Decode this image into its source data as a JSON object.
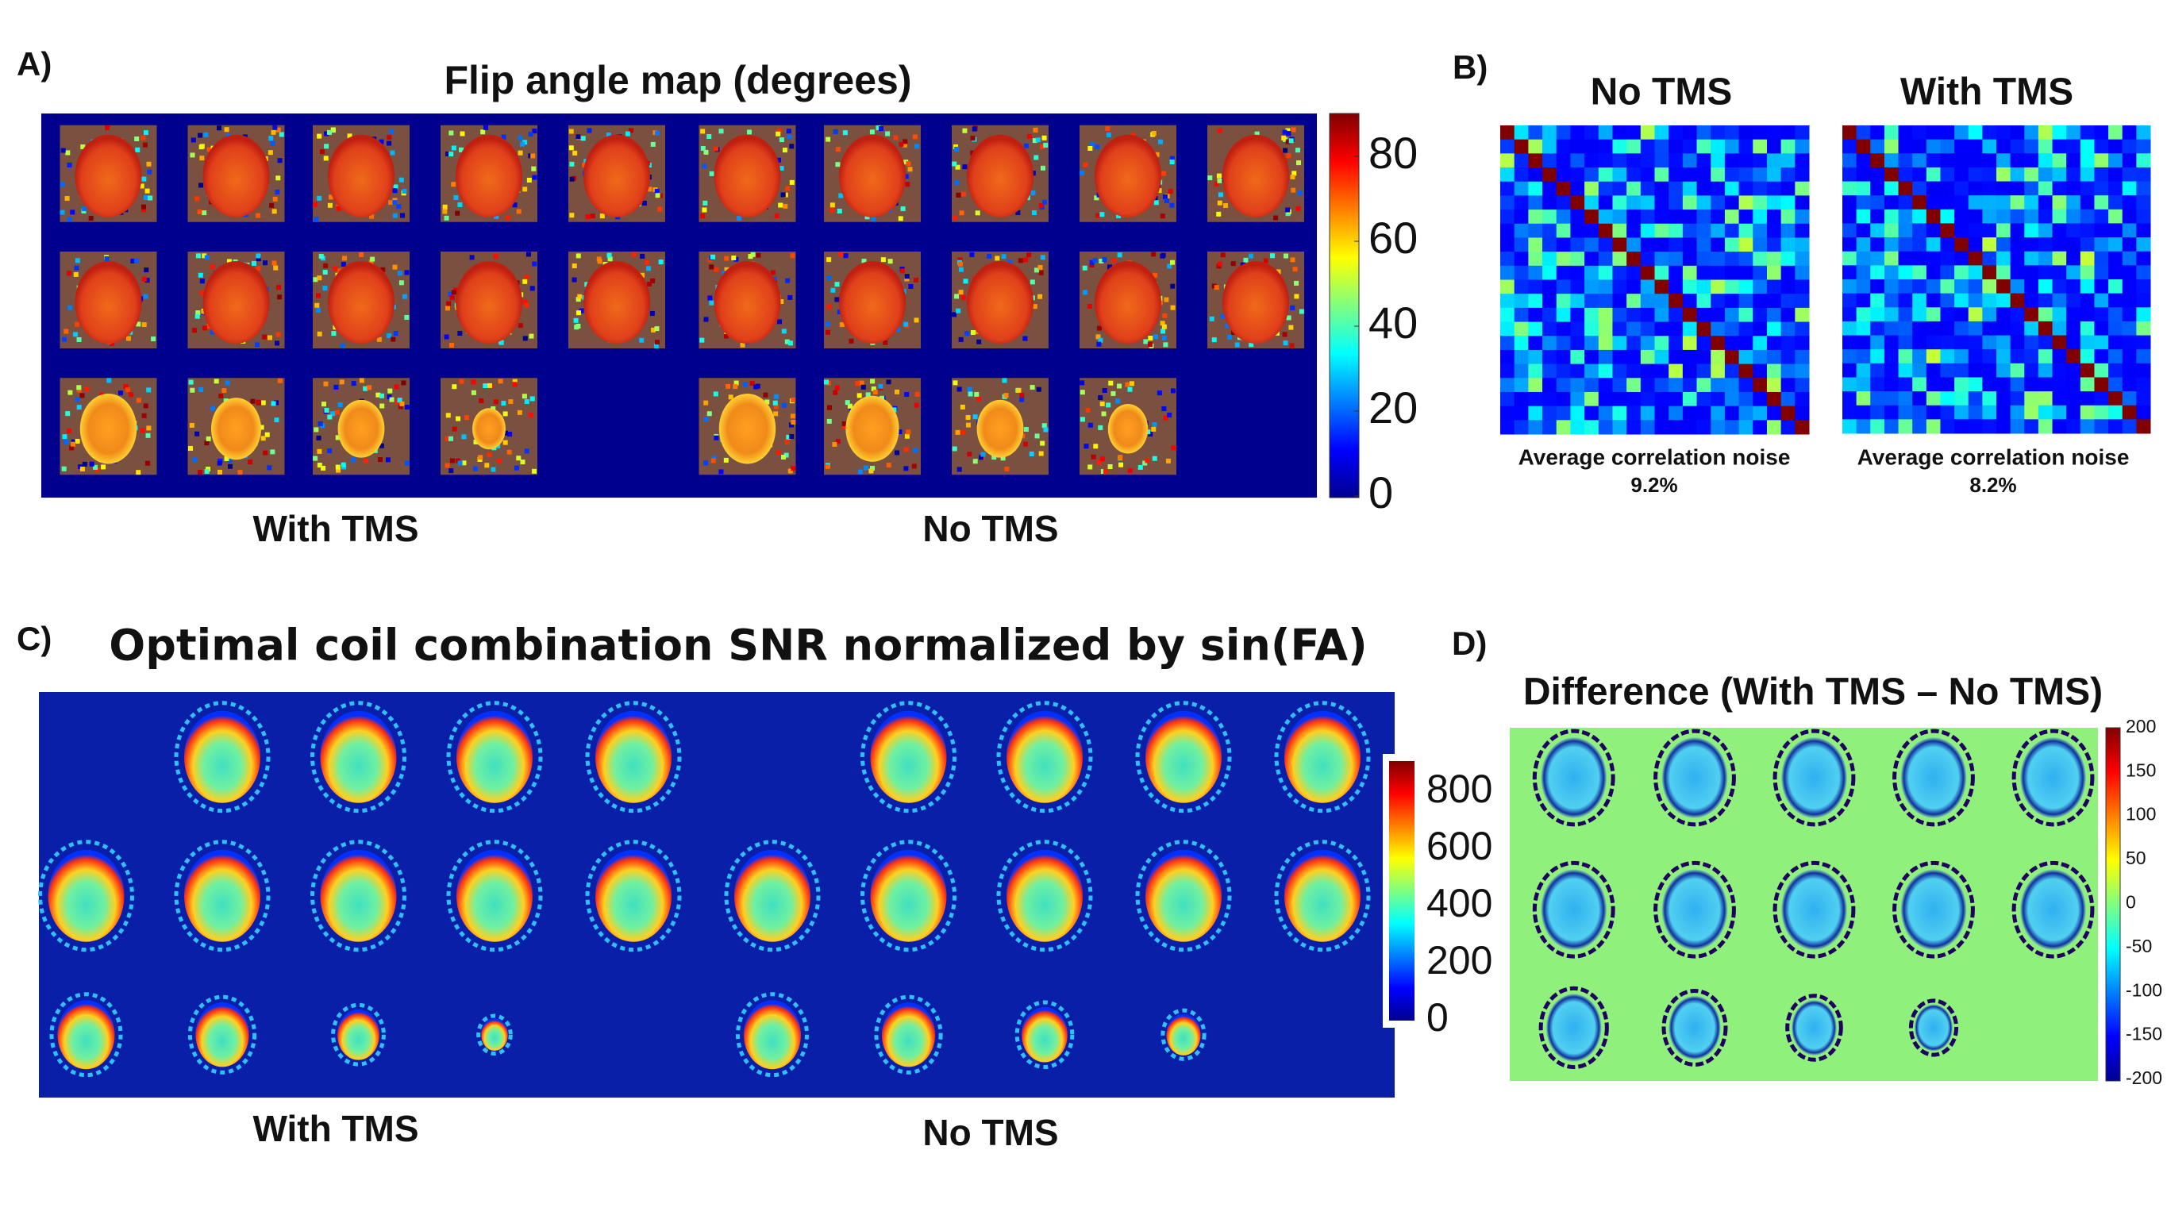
{
  "panels": [
    {
      "label": "A)",
      "title": "Flip angle map (degrees)",
      "colorbar_ticks": [
        0,
        20,
        40,
        60,
        80
      ],
      "group_labels": [
        "With TMS",
        "No TMS"
      ]
    },
    {
      "label": "B)",
      "matrices": [
        {
          "title": "No TMS",
          "caption": "Average correlation noise",
          "value": "9.2%"
        },
        {
          "title": "With TMS",
          "caption": "Average correlation noise",
          "value": "8.2%"
        }
      ]
    },
    {
      "label": "C)",
      "title": "Optimal coil combination SNR normalized by sin(FA)",
      "colorbar_ticks": [
        0,
        200,
        400,
        600,
        800
      ],
      "group_labels": [
        "With TMS",
        "No TMS"
      ]
    },
    {
      "label": "D)",
      "title": "Difference (With TMS – No TMS)",
      "colorbar_ticks": [
        -200,
        -150,
        -100,
        -50,
        0,
        50,
        100,
        150,
        200
      ]
    }
  ]
}
